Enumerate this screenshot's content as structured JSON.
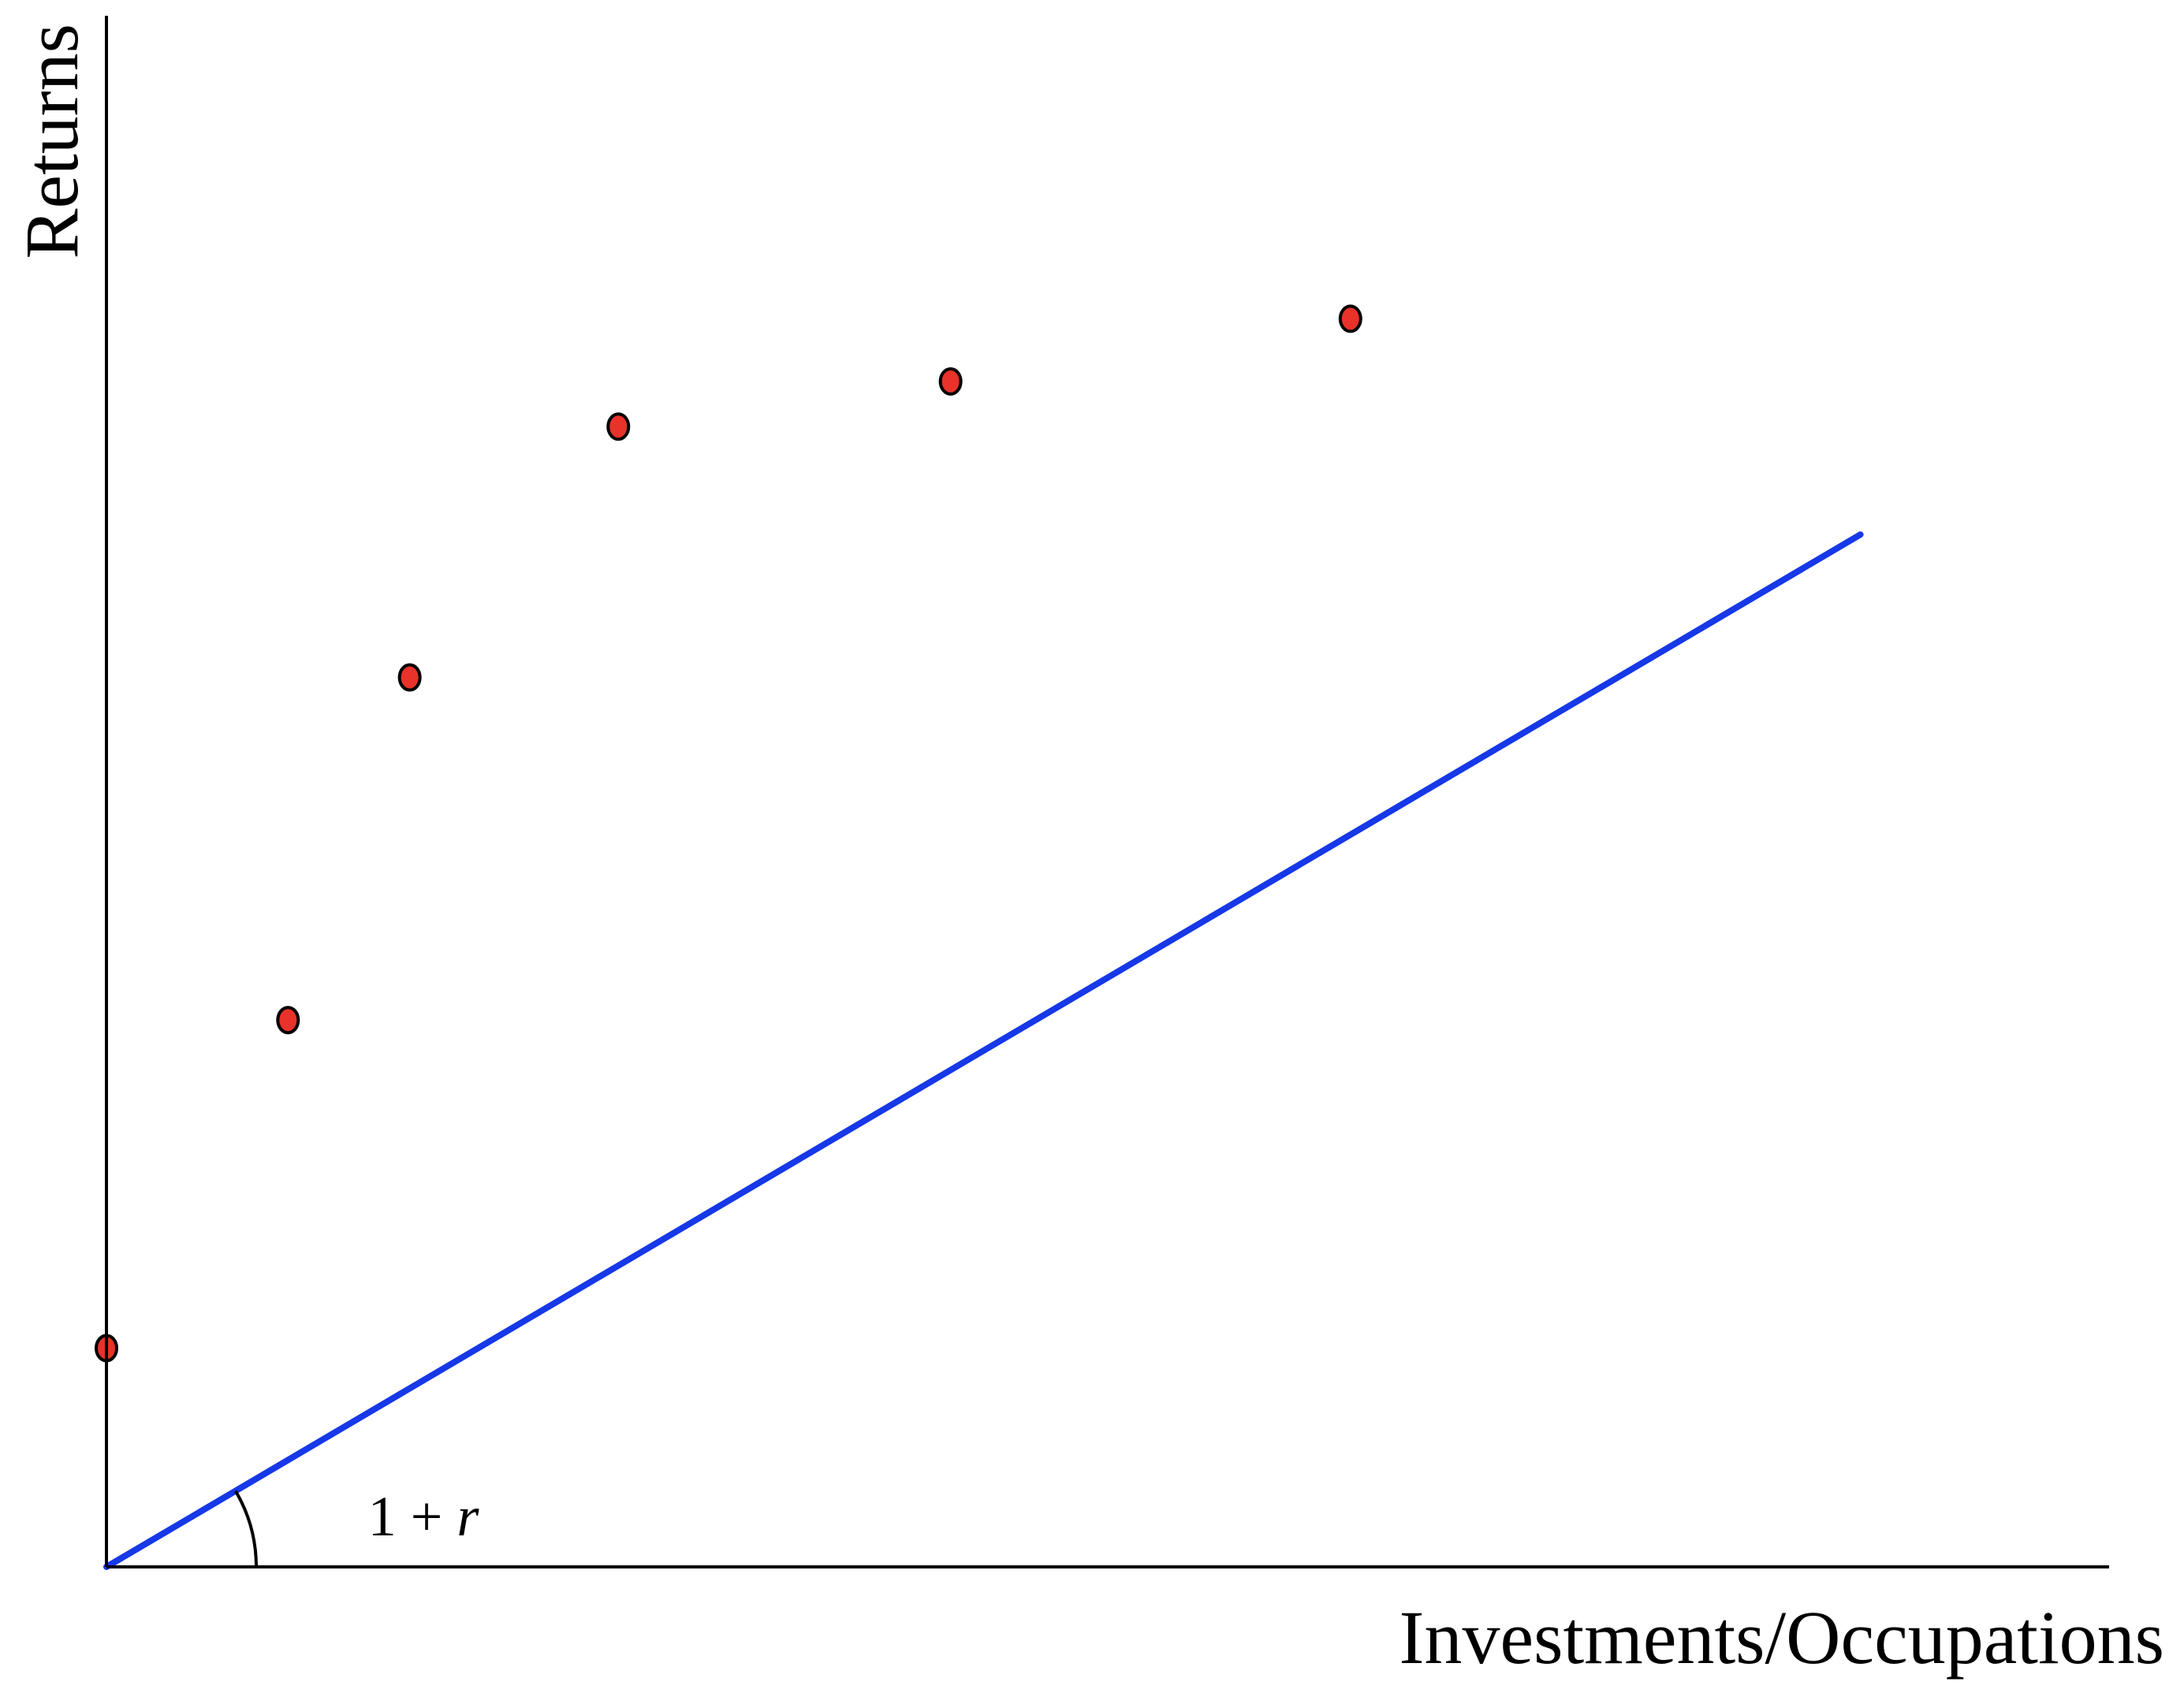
{
  "chart_data": {
    "type": "scatter",
    "xlabel": "Investments/Occupations",
    "ylabel": "Returns",
    "xlim": [
      0,
      10
    ],
    "ylim": [
      0,
      10
    ],
    "grid": false,
    "legend": "none",
    "series": [
      {
        "kind": "points",
        "color": "#e8322a",
        "x": [
          0.0,
          0.94,
          1.57,
          2.65,
          4.37,
          6.44
        ],
        "y": [
          1.5,
          3.75,
          6.1,
          7.82,
          8.13,
          8.56
        ]
      },
      {
        "kind": "line",
        "color": "#1638e8",
        "x": [
          0.0,
          9.08
        ],
        "y": [
          0.0,
          7.08
        ]
      }
    ],
    "annotations": [
      {
        "text_main": "1 + ",
        "text_italic": "r",
        "x": 0.75,
        "y": 0.0
      }
    ]
  }
}
